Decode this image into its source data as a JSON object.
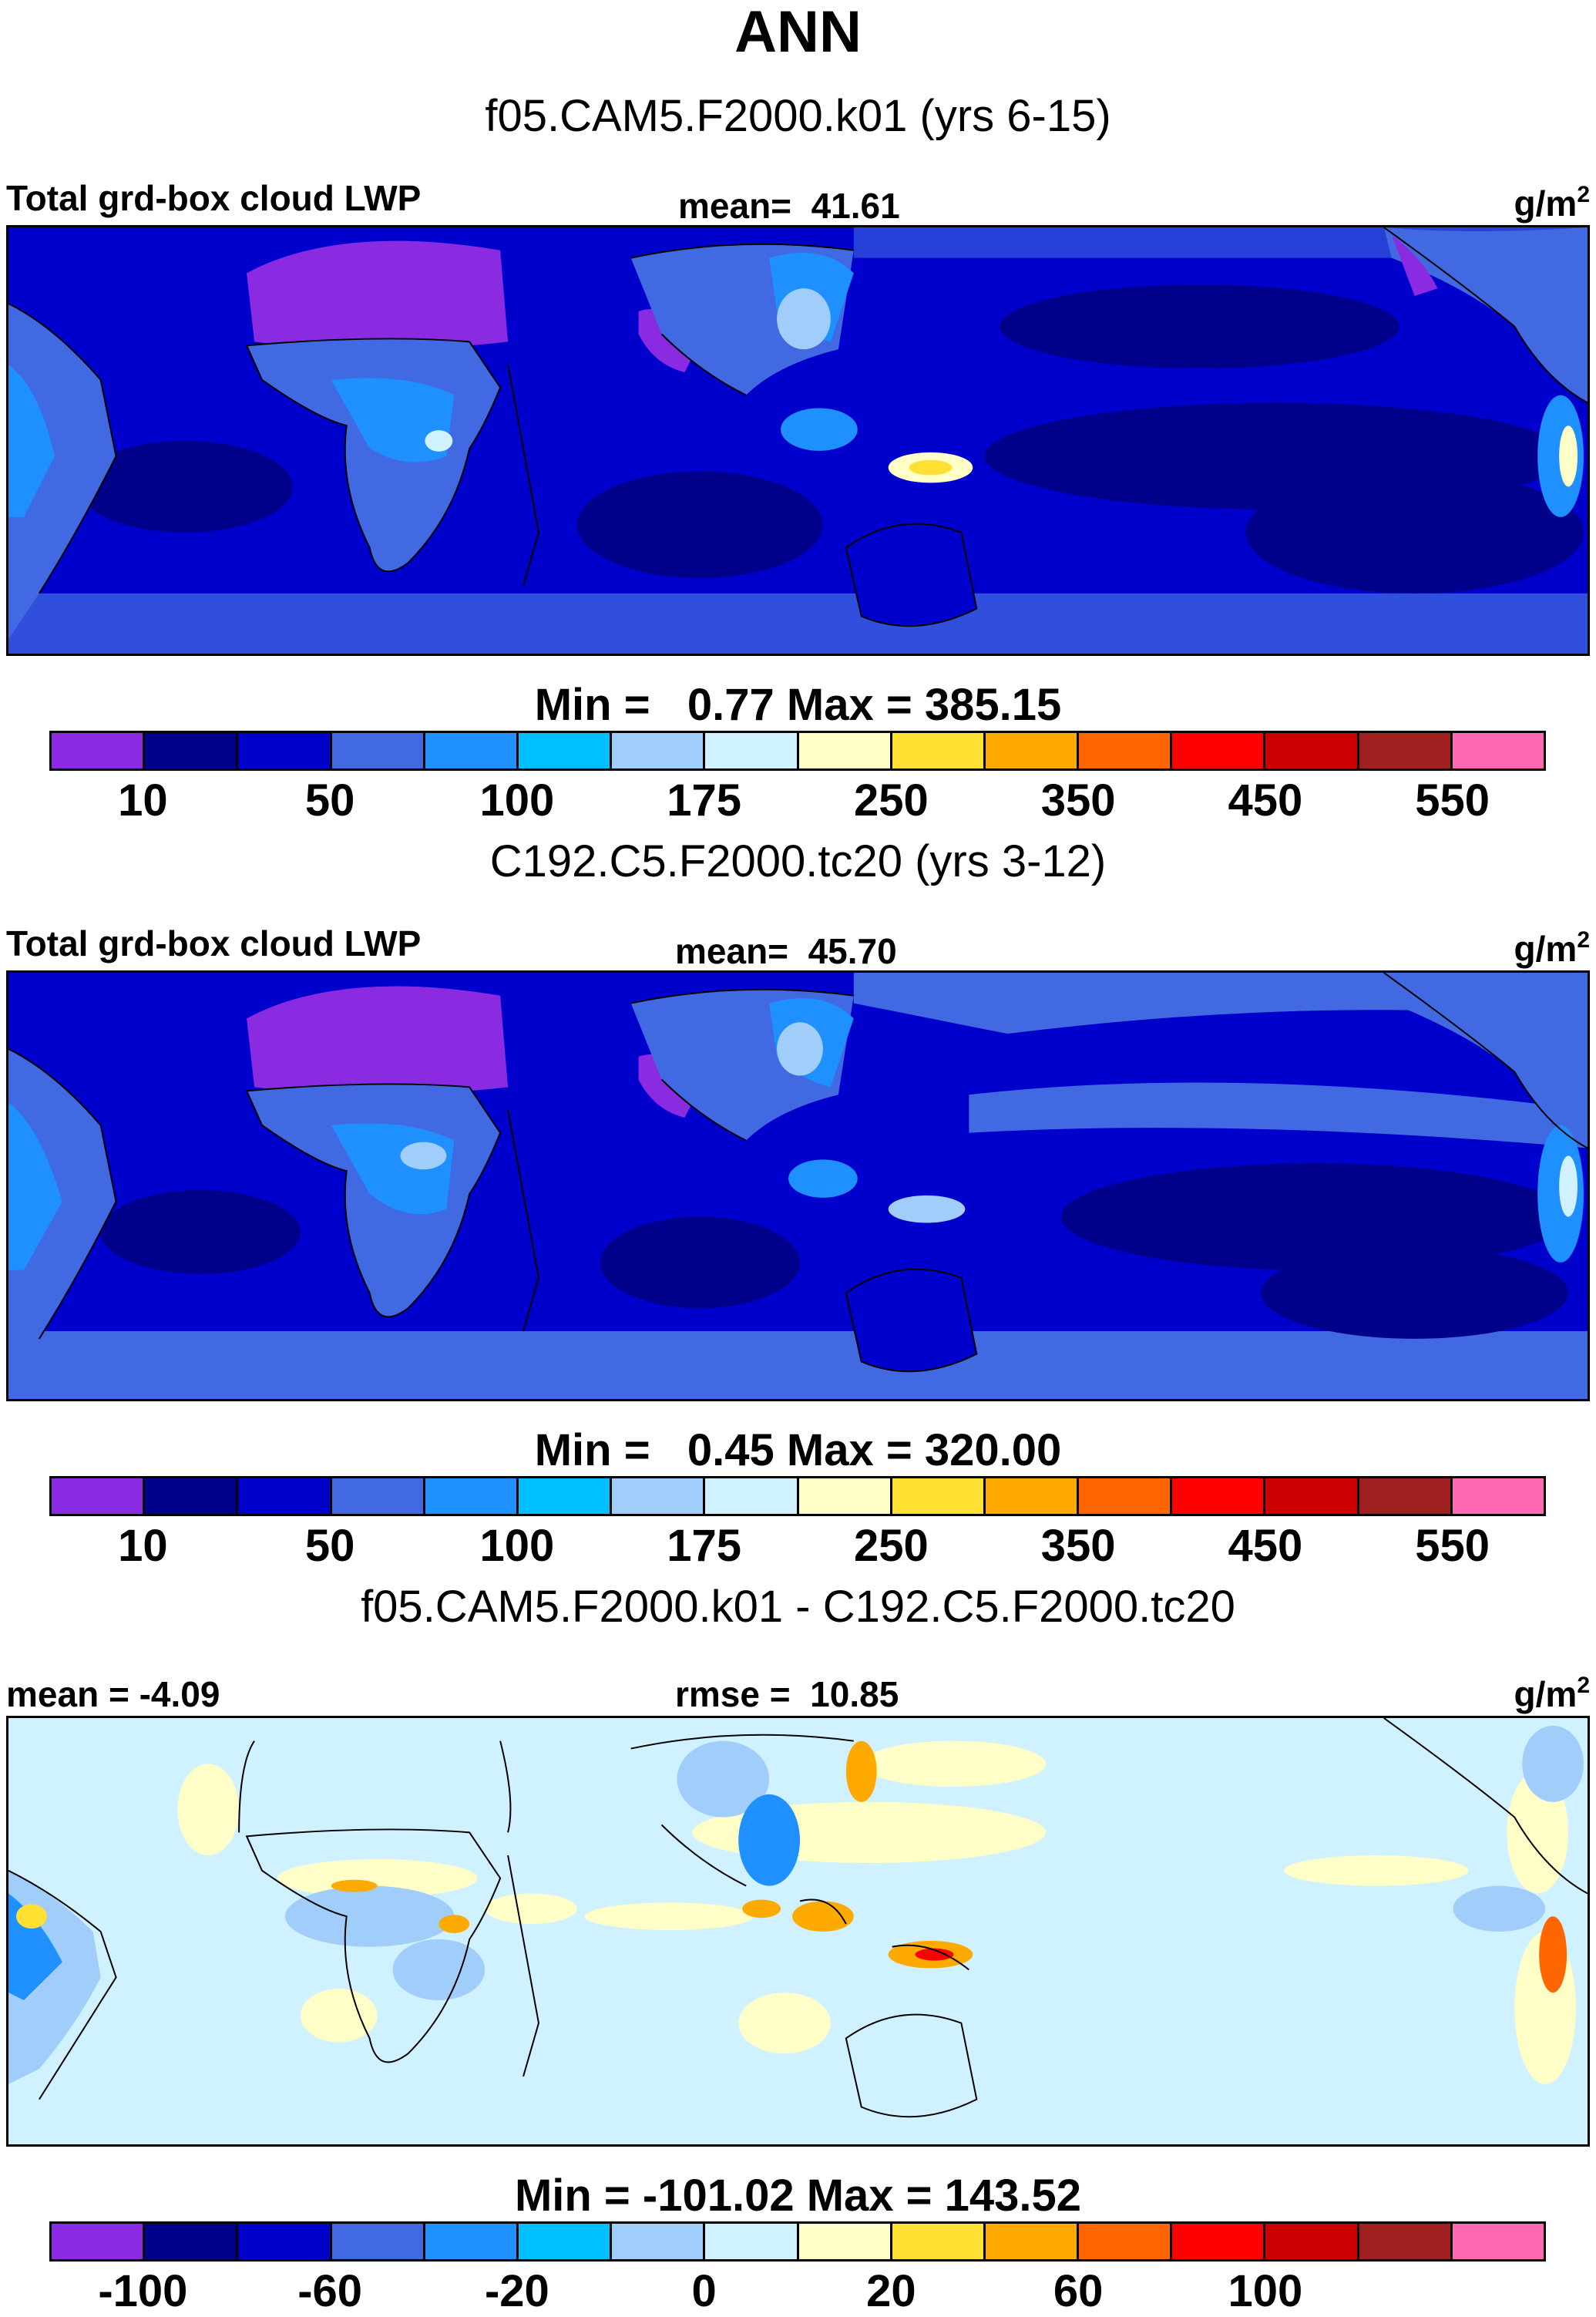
{
  "figure_title": "ANN",
  "units_base": "g/m",
  "units_exp": "2",
  "panels": [
    {
      "case": "f05.CAM5.F2000.k01 (yrs 6-15)",
      "left_label": "Total grd-box cloud LWP",
      "center_label": "mean=  41.61",
      "minmax": "Min =   0.77 Max = 385.15",
      "fill_levels": [
        10,
        30,
        50,
        50
      ],
      "cb_colors": [
        "#8a2be2",
        "#00008b",
        "#0000cd",
        "#4169e1",
        "#1e90ff",
        "#00bfff",
        "#a0cdf9",
        "#d0f1ff",
        "#ffffc7",
        "#ffe033",
        "#ffaa00",
        "#ff6600",
        "#ff0000",
        "#cc0000",
        "#a02020",
        "#ff69b4"
      ],
      "ticks": [
        "10",
        "50",
        "100",
        "175",
        "250",
        "350",
        "450",
        "550"
      ]
    },
    {
      "case": "C192.C5.F2000.tc20 (yrs 3-12)",
      "left_label": "Total grd-box cloud LWP",
      "center_label": "mean=  45.70",
      "minmax": "Min =   0.45 Max = 320.00",
      "cb_colors": [
        "#8a2be2",
        "#00008b",
        "#0000cd",
        "#4169e1",
        "#1e90ff",
        "#00bfff",
        "#a0cdf9",
        "#d0f1ff",
        "#ffffc7",
        "#ffe033",
        "#ffaa00",
        "#ff6600",
        "#ff0000",
        "#cc0000",
        "#a02020",
        "#ff69b4"
      ],
      "ticks": [
        "10",
        "50",
        "100",
        "175",
        "250",
        "350",
        "450",
        "550"
      ]
    },
    {
      "case": "f05.CAM5.F2000.k01 - C192.C5.F2000.tc20",
      "left_label": "mean =  -4.09",
      "center_label": "rmse =  10.85",
      "minmax": "Min = -101.02 Max = 143.52",
      "cb_colors": [
        "#8a2be2",
        "#00008b",
        "#0000cd",
        "#4169e1",
        "#1e90ff",
        "#00bfff",
        "#a0cdf9",
        "#d0f1ff",
        "#ffffc7",
        "#ffe033",
        "#ffaa00",
        "#ff6600",
        "#ff0000",
        "#cc0000",
        "#a02020",
        "#ff69b4"
      ],
      "ticks": [
        "-100",
        "-60",
        "-20",
        "0",
        "20",
        "60",
        "100"
      ]
    }
  ]
}
